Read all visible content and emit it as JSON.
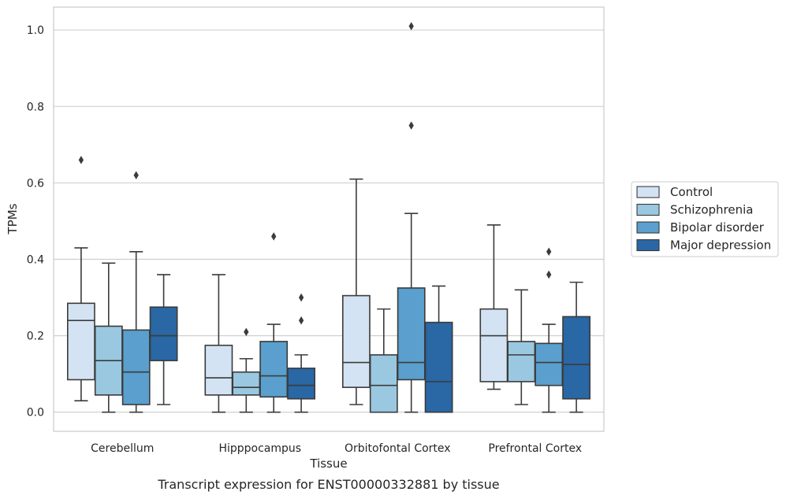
{
  "chart_data": {
    "type": "box",
    "title": "",
    "xlabel": "Tissue",
    "ylabel": "TPMs",
    "caption": "Transcript expression for ENST00000332881 by tissue",
    "ylim": [
      -0.05,
      1.06
    ],
    "yticks": [
      0.0,
      0.2,
      0.4,
      0.6,
      0.8,
      1.0
    ],
    "ytick_labels": [
      "0.0",
      "0.2",
      "0.4",
      "0.6",
      "0.8",
      "1.0"
    ],
    "grid": "horizontal",
    "legend_position": "right",
    "categories": [
      "Cerebellum",
      "Hipppocampus",
      "Orbitofontal Cortex",
      "Prefrontal Cortex"
    ],
    "series": [
      {
        "name": "Control",
        "color": "#d3e3f3",
        "boxes": [
          {
            "whislo": 0.03,
            "q1": 0.085,
            "med": 0.24,
            "q3": 0.285,
            "whishi": 0.43,
            "fliers": [
              0.66
            ]
          },
          {
            "whislo": 0.0,
            "q1": 0.045,
            "med": 0.09,
            "q3": 0.175,
            "whishi": 0.36,
            "fliers": []
          },
          {
            "whislo": 0.02,
            "q1": 0.065,
            "med": 0.13,
            "q3": 0.305,
            "whishi": 0.61,
            "fliers": []
          },
          {
            "whislo": 0.06,
            "q1": 0.08,
            "med": 0.2,
            "q3": 0.27,
            "whishi": 0.49,
            "fliers": []
          }
        ]
      },
      {
        "name": "Schizophrenia",
        "color": "#9ac8e0",
        "boxes": [
          {
            "whislo": 0.0,
            "q1": 0.045,
            "med": 0.135,
            "q3": 0.225,
            "whishi": 0.39,
            "fliers": []
          },
          {
            "whislo": 0.0,
            "q1": 0.045,
            "med": 0.065,
            "q3": 0.105,
            "whishi": 0.14,
            "fliers": [
              0.21
            ]
          },
          {
            "whislo": 0.0,
            "q1": 0.0,
            "med": 0.07,
            "q3": 0.15,
            "whishi": 0.27,
            "fliers": []
          },
          {
            "whislo": 0.02,
            "q1": 0.08,
            "med": 0.15,
            "q3": 0.185,
            "whishi": 0.32,
            "fliers": []
          }
        ]
      },
      {
        "name": "Bipolar disorder",
        "color": "#5a9fcd",
        "boxes": [
          {
            "whislo": 0.0,
            "q1": 0.02,
            "med": 0.105,
            "q3": 0.215,
            "whishi": 0.42,
            "fliers": [
              0.62
            ]
          },
          {
            "whislo": 0.0,
            "q1": 0.04,
            "med": 0.095,
            "q3": 0.185,
            "whishi": 0.23,
            "fliers": [
              0.46
            ]
          },
          {
            "whislo": 0.0,
            "q1": 0.085,
            "med": 0.13,
            "q3": 0.325,
            "whishi": 0.52,
            "fliers": [
              0.75,
              1.01
            ]
          },
          {
            "whislo": 0.0,
            "q1": 0.07,
            "med": 0.13,
            "q3": 0.18,
            "whishi": 0.23,
            "fliers": [
              0.36,
              0.42
            ]
          }
        ]
      },
      {
        "name": "Major depression",
        "color": "#2967a5",
        "boxes": [
          {
            "whislo": 0.02,
            "q1": 0.135,
            "med": 0.2,
            "q3": 0.275,
            "whishi": 0.36,
            "fliers": []
          },
          {
            "whislo": 0.0,
            "q1": 0.035,
            "med": 0.07,
            "q3": 0.115,
            "whishi": 0.15,
            "fliers": [
              0.24,
              0.3
            ]
          },
          {
            "whislo": 0.0,
            "q1": 0.0,
            "med": 0.08,
            "q3": 0.235,
            "whishi": 0.33,
            "fliers": []
          },
          {
            "whislo": 0.0,
            "q1": 0.035,
            "med": 0.125,
            "q3": 0.25,
            "whishi": 0.34,
            "fliers": []
          }
        ]
      }
    ]
  }
}
